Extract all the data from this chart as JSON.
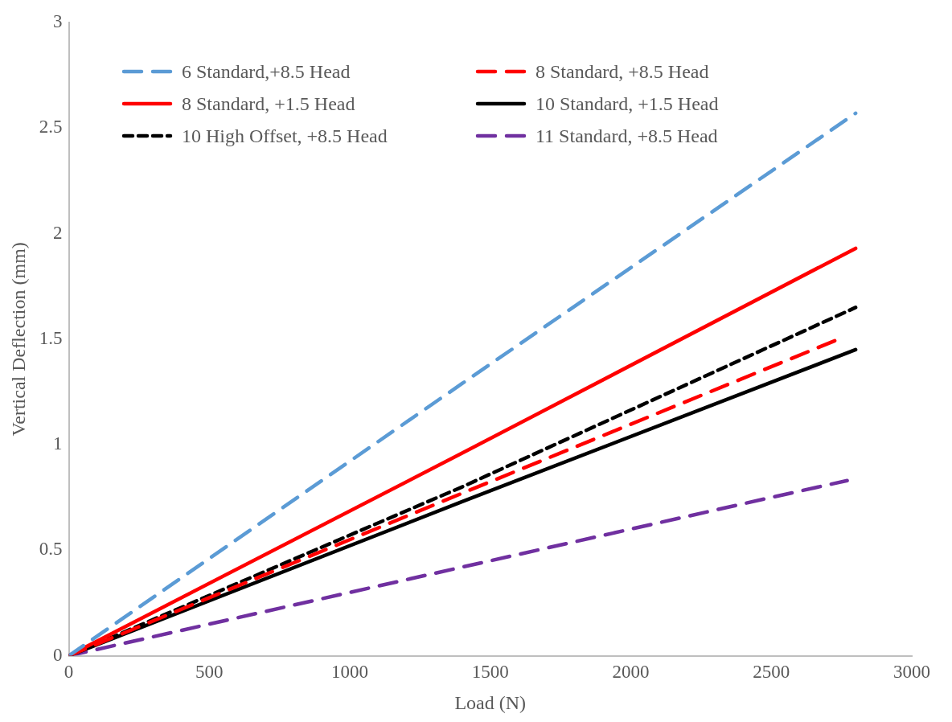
{
  "chart_data": {
    "type": "line",
    "xlabel": "Load (N)",
    "ylabel": "Vertical Deflection (mm)",
    "xlim": [
      0,
      3000
    ],
    "xticks": [
      0,
      500,
      1000,
      1500,
      2000,
      2500,
      3000
    ],
    "ylim": [
      0,
      3
    ],
    "yticks": [
      0,
      0.5,
      1,
      1.5,
      2,
      2.5,
      3
    ],
    "grid": false,
    "legend": "top",
    "marker": "none",
    "series": [
      {
        "name": "6 Standard,+8.5 Head",
        "color": "#5b9bd5",
        "line_style": "dashed",
        "x": [
          0,
          1400,
          2800
        ],
        "values": [
          0,
          1.29,
          2.57
        ]
      },
      {
        "name": "8 Standard, +8.5 Head",
        "color": "#ff0000",
        "line_style": "dashed",
        "x": [
          0,
          1400,
          2740
        ],
        "values": [
          0,
          0.77,
          1.5
        ]
      },
      {
        "name": "8 Standard, +1.5 Head",
        "color": "#ff0000",
        "line_style": "solid",
        "x": [
          0,
          1400,
          2800
        ],
        "values": [
          0,
          0.96,
          1.93
        ]
      },
      {
        "name": "10 Standard, +1.5 Head",
        "color": "#000000",
        "line_style": "solid",
        "x": [
          0,
          1400,
          2800
        ],
        "values": [
          0,
          0.73,
          1.45
        ]
      },
      {
        "name": "10 High Offset, +8.5 Head",
        "color": "#000000",
        "line_style": "dotted",
        "x": [
          0,
          1400,
          2800
        ],
        "values": [
          0,
          0.8,
          1.65
        ]
      },
      {
        "name": "11 Standard, +8.5 Head",
        "color": "#7030a0",
        "line_style": "dashed",
        "x": [
          0,
          500,
          1000,
          1500,
          2000,
          2500,
          2770
        ],
        "values": [
          0,
          0.15,
          0.3,
          0.45,
          0.6,
          0.75,
          0.83
        ]
      }
    ]
  }
}
